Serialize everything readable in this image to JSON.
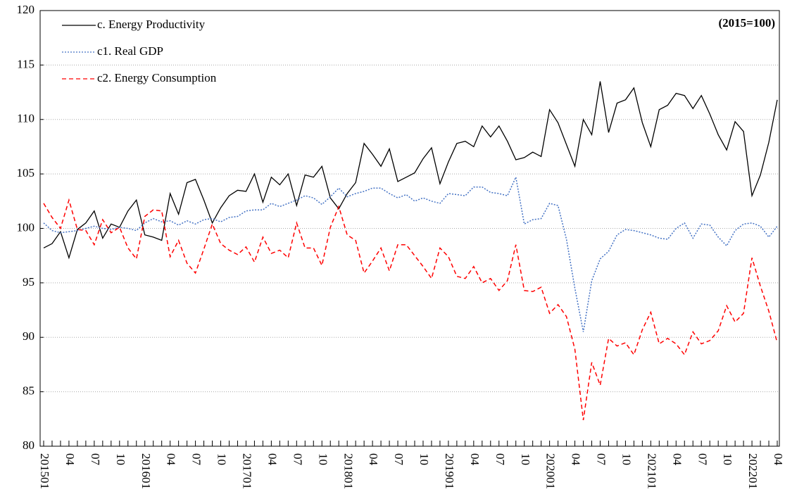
{
  "chart_data": {
    "type": "line",
    "annotation": "(2015=100)",
    "categories": [
      "201501",
      null,
      null,
      "04",
      null,
      null,
      "07",
      null,
      null,
      "10",
      null,
      null,
      "201601",
      null,
      null,
      "04",
      null,
      null,
      "07",
      null,
      null,
      "10",
      null,
      null,
      "201701",
      null,
      null,
      "04",
      null,
      null,
      "07",
      null,
      null,
      "10",
      null,
      null,
      "201801",
      null,
      null,
      "04",
      null,
      null,
      "07",
      null,
      null,
      "10",
      null,
      null,
      "201901",
      null,
      null,
      "04",
      null,
      null,
      "07",
      null,
      null,
      "10",
      null,
      null,
      "202001",
      null,
      null,
      "04",
      null,
      null,
      "07",
      null,
      null,
      "10",
      null,
      null,
      "202101",
      null,
      null,
      "04",
      null,
      null,
      "07",
      null,
      null,
      "10",
      null,
      null,
      "202201",
      null,
      null,
      "04"
    ],
    "series": [
      {
        "name": "c. Energy Productivity",
        "color": "#000000",
        "style": "solid",
        "values": [
          98.2,
          98.6,
          99.7,
          97.3,
          99.9,
          100.5,
          101.6,
          99.1,
          100.4,
          100.1,
          101.6,
          102.6,
          99.4,
          99.2,
          98.9,
          103.2,
          101.3,
          104.2,
          104.5,
          102.6,
          100.5,
          101.9,
          103.0,
          103.5,
          103.4,
          105.0,
          102.4,
          104.7,
          104.0,
          105.0,
          102.1,
          104.9,
          104.7,
          105.7,
          102.8,
          101.8,
          103.2,
          104.2,
          107.8,
          106.8,
          105.7,
          107.3,
          104.3,
          104.7,
          105.1,
          106.4,
          107.4,
          104.1,
          106.1,
          107.8,
          108.0,
          107.5,
          109.4,
          108.4,
          109.4,
          108.0,
          106.3,
          106.5,
          107.0,
          106.6,
          110.9,
          109.7,
          107.7,
          105.7,
          110.0,
          108.6,
          113.5,
          108.8,
          111.5,
          111.8,
          112.9,
          109.7,
          107.5,
          110.9,
          111.3,
          112.4,
          112.2,
          111.0,
          112.2,
          110.5,
          108.6,
          107.2,
          109.8,
          108.9,
          103.0,
          104.9,
          107.9,
          111.8
        ]
      },
      {
        "name": "c1. Real GDP",
        "color": "#4472c4",
        "style": "dotted",
        "values": [
          100.5,
          99.8,
          99.6,
          99.7,
          99.8,
          100.0,
          100.2,
          100.0,
          99.9,
          100.1,
          100.0,
          99.8,
          100.5,
          100.9,
          100.6,
          100.7,
          100.3,
          100.7,
          100.4,
          100.8,
          100.9,
          100.6,
          101.0,
          101.1,
          101.6,
          101.7,
          101.7,
          102.3,
          102.0,
          102.3,
          102.6,
          103.0,
          102.8,
          102.2,
          102.9,
          103.7,
          102.9,
          103.2,
          103.4,
          103.7,
          103.7,
          103.2,
          102.8,
          103.1,
          102.5,
          102.8,
          102.5,
          102.3,
          103.2,
          103.1,
          103.0,
          103.8,
          103.8,
          103.3,
          103.2,
          103.0,
          104.7,
          100.4,
          100.8,
          100.9,
          102.3,
          102.1,
          99.0,
          94.5,
          90.5,
          95.2,
          97.2,
          97.9,
          99.4,
          99.9,
          99.8,
          99.6,
          99.4,
          99.1,
          99.0,
          100.0,
          100.5,
          99.1,
          100.4,
          100.3,
          99.2,
          98.4,
          99.8,
          100.4,
          100.5,
          100.2,
          99.2,
          100.2
        ]
      },
      {
        "name": "c2. Energy Consumption",
        "color": "#ff0000",
        "style": "dashed",
        "values": [
          102.3,
          101.0,
          100.0,
          102.6,
          99.9,
          99.8,
          98.5,
          100.8,
          99.6,
          100.1,
          98.2,
          97.2,
          101.1,
          101.7,
          101.6,
          97.4,
          98.9,
          96.8,
          95.9,
          98.1,
          100.4,
          98.6,
          98.0,
          97.6,
          98.3,
          96.9,
          99.2,
          97.7,
          98.0,
          97.3,
          100.5,
          98.2,
          98.2,
          96.6,
          100.1,
          102.0,
          99.4,
          98.9,
          95.9,
          97.0,
          98.2,
          96.1,
          98.5,
          98.5,
          97.5,
          96.5,
          95.4,
          98.2,
          97.4,
          95.6,
          95.4,
          96.5,
          95.0,
          95.4,
          94.3,
          95.2,
          98.5,
          94.3,
          94.2,
          94.6,
          92.2,
          93.0,
          91.9,
          88.9,
          82.4,
          87.7,
          85.6,
          89.9,
          89.2,
          89.5,
          88.4,
          90.7,
          92.3,
          89.4,
          89.9,
          89.4,
          88.4,
          90.5,
          89.4,
          89.7,
          90.6,
          92.9,
          91.4,
          92.2,
          97.3,
          94.7,
          92.4,
          89.5
        ]
      }
    ],
    "ylim": [
      80,
      120
    ],
    "yticks": [
      80,
      85,
      90,
      95,
      100,
      105,
      110,
      115,
      120
    ],
    "grid": true,
    "legend": "top-left"
  }
}
